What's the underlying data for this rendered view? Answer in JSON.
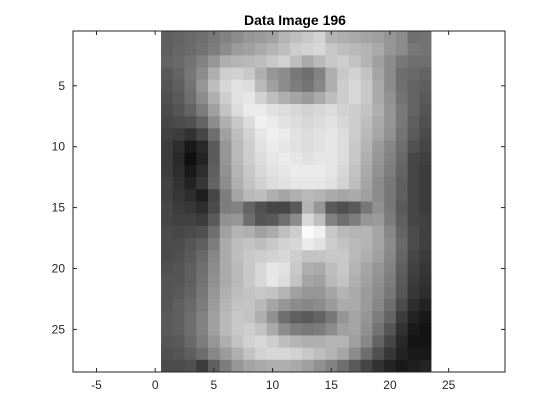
{
  "chart_data": {
    "type": "heatmap",
    "title": "Data Image 196",
    "xlabel": "",
    "ylabel": "",
    "colormap": "gray",
    "xlim": [
      -7,
      29.8
    ],
    "ylim": [
      0.5,
      28.5
    ],
    "y_direction": "reversed",
    "grid": false,
    "x_ticks": [
      -5,
      0,
      5,
      10,
      15,
      20,
      25
    ],
    "y_ticks": [
      5,
      10,
      15,
      20,
      25
    ],
    "x_tick_labels": [
      "-5",
      "0",
      "5",
      "10",
      "15",
      "20",
      "25"
    ],
    "y_tick_labels": [
      "5",
      "10",
      "15",
      "20",
      "25"
    ],
    "pixel_grid": {
      "columns": 23,
      "rows": 28,
      "x_center_range": [
        1,
        23
      ],
      "y_center_range": [
        1,
        28
      ]
    },
    "intensity_rows": [
      [
        95,
        100,
        105,
        110,
        120,
        130,
        140,
        150,
        155,
        160,
        180,
        190,
        200,
        210,
        180,
        175,
        170,
        165,
        160,
        150,
        140,
        110,
        115
      ],
      [
        95,
        102,
        107,
        115,
        125,
        140,
        155,
        160,
        170,
        180,
        190,
        205,
        210,
        215,
        200,
        190,
        185,
        180,
        170,
        150,
        140,
        120,
        115
      ],
      [
        100,
        105,
        115,
        130,
        150,
        175,
        180,
        185,
        190,
        200,
        210,
        190,
        170,
        185,
        200,
        205,
        195,
        180,
        160,
        140,
        120,
        110,
        110
      ],
      [
        90,
        100,
        120,
        140,
        175,
        205,
        210,
        200,
        175,
        150,
        140,
        120,
        110,
        130,
        175,
        200,
        210,
        195,
        165,
        140,
        110,
        105,
        100
      ],
      [
        85,
        95,
        115,
        150,
        190,
        215,
        225,
        220,
        185,
        160,
        140,
        125,
        115,
        135,
        175,
        205,
        215,
        200,
        170,
        140,
        110,
        100,
        95
      ],
      [
        80,
        90,
        110,
        140,
        175,
        205,
        225,
        230,
        210,
        190,
        175,
        165,
        155,
        170,
        190,
        205,
        215,
        200,
        170,
        145,
        115,
        100,
        90
      ],
      [
        75,
        85,
        100,
        125,
        160,
        195,
        220,
        235,
        235,
        225,
        220,
        215,
        210,
        215,
        220,
        210,
        205,
        195,
        175,
        150,
        120,
        100,
        85
      ],
      [
        70,
        75,
        80,
        100,
        140,
        175,
        200,
        220,
        240,
        235,
        225,
        220,
        215,
        220,
        225,
        215,
        205,
        190,
        170,
        150,
        120,
        95,
        80
      ],
      [
        65,
        60,
        50,
        70,
        110,
        160,
        190,
        210,
        230,
        240,
        235,
        225,
        220,
        225,
        230,
        220,
        205,
        185,
        165,
        145,
        115,
        90,
        75
      ],
      [
        60,
        45,
        25,
        40,
        90,
        150,
        185,
        205,
        225,
        235,
        230,
        225,
        220,
        225,
        230,
        220,
        200,
        180,
        155,
        135,
        110,
        80,
        70
      ],
      [
        60,
        40,
        15,
        35,
        90,
        150,
        185,
        205,
        220,
        230,
        235,
        230,
        225,
        230,
        230,
        220,
        200,
        175,
        150,
        130,
        105,
        70,
        65
      ],
      [
        60,
        45,
        25,
        45,
        95,
        145,
        180,
        200,
        215,
        225,
        230,
        235,
        235,
        235,
        230,
        215,
        195,
        170,
        145,
        125,
        100,
        70,
        60
      ],
      [
        65,
        50,
        35,
        55,
        100,
        140,
        175,
        195,
        210,
        220,
        225,
        230,
        230,
        230,
        225,
        210,
        190,
        165,
        140,
        120,
        95,
        70,
        60
      ],
      [
        65,
        55,
        45,
        30,
        70,
        125,
        165,
        185,
        190,
        175,
        165,
        175,
        185,
        180,
        170,
        165,
        170,
        160,
        140,
        120,
        95,
        70,
        60
      ],
      [
        70,
        60,
        55,
        45,
        75,
        125,
        130,
        100,
        80,
        70,
        70,
        90,
        180,
        150,
        90,
        80,
        90,
        120,
        145,
        120,
        90,
        70,
        60
      ],
      [
        70,
        65,
        65,
        60,
        90,
        145,
        150,
        110,
        85,
        90,
        110,
        140,
        215,
        190,
        130,
        110,
        125,
        150,
        155,
        125,
        95,
        70,
        65
      ],
      [
        75,
        70,
        75,
        80,
        110,
        160,
        180,
        175,
        160,
        170,
        190,
        205,
        250,
        240,
        200,
        185,
        180,
        180,
        165,
        135,
        100,
        75,
        65
      ],
      [
        75,
        75,
        85,
        95,
        125,
        170,
        190,
        195,
        190,
        200,
        210,
        215,
        235,
        225,
        205,
        195,
        185,
        180,
        165,
        140,
        105,
        75,
        65
      ],
      [
        75,
        80,
        90,
        105,
        135,
        170,
        190,
        200,
        205,
        210,
        215,
        205,
        195,
        195,
        200,
        200,
        185,
        175,
        160,
        135,
        100,
        70,
        60
      ],
      [
        80,
        85,
        95,
        110,
        140,
        170,
        185,
        200,
        215,
        230,
        225,
        200,
        175,
        170,
        190,
        200,
        180,
        165,
        150,
        130,
        95,
        65,
        55
      ],
      [
        85,
        85,
        95,
        115,
        145,
        170,
        185,
        200,
        215,
        230,
        220,
        195,
        165,
        160,
        185,
        195,
        175,
        160,
        145,
        125,
        90,
        60,
        50
      ],
      [
        85,
        90,
        100,
        120,
        150,
        175,
        190,
        195,
        200,
        195,
        180,
        160,
        150,
        150,
        165,
        180,
        170,
        155,
        140,
        120,
        85,
        55,
        45
      ],
      [
        85,
        95,
        105,
        125,
        155,
        180,
        195,
        195,
        185,
        165,
        150,
        140,
        135,
        140,
        155,
        170,
        170,
        155,
        135,
        110,
        75,
        45,
        35
      ],
      [
        90,
        95,
        110,
        130,
        160,
        185,
        200,
        195,
        175,
        145,
        110,
        95,
        90,
        100,
        120,
        150,
        165,
        150,
        125,
        100,
        60,
        35,
        25
      ],
      [
        90,
        95,
        110,
        130,
        160,
        185,
        200,
        205,
        195,
        170,
        140,
        125,
        120,
        125,
        140,
        160,
        165,
        145,
        115,
        85,
        50,
        25,
        20
      ],
      [
        85,
        90,
        105,
        125,
        150,
        175,
        195,
        210,
        215,
        205,
        190,
        180,
        175,
        175,
        180,
        180,
        160,
        135,
        100,
        70,
        40,
        20,
        20
      ],
      [
        80,
        85,
        95,
        110,
        135,
        155,
        175,
        195,
        210,
        215,
        215,
        210,
        200,
        190,
        180,
        165,
        140,
        110,
        80,
        55,
        35,
        25,
        25
      ],
      [
        75,
        75,
        80,
        60,
        95,
        125,
        150,
        165,
        170,
        175,
        175,
        170,
        160,
        145,
        130,
        110,
        90,
        70,
        50,
        35,
        25,
        30,
        35
      ]
    ]
  }
}
